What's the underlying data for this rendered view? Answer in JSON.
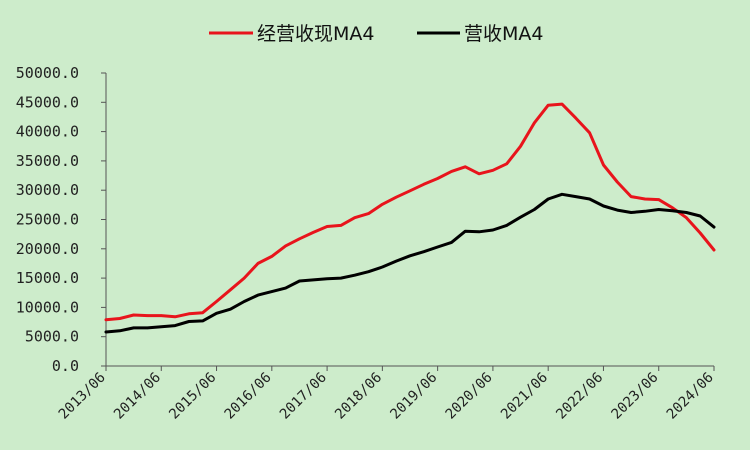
{
  "chart_data": {
    "type": "line",
    "title": "",
    "xlabel": "",
    "ylabel": "",
    "ylim": [
      0,
      50000
    ],
    "yticks": [
      "0.0",
      "5000.0",
      "10000.0",
      "15000.0",
      "20000.0",
      "25000.0",
      "30000.0",
      "35000.0",
      "40000.0",
      "45000.0",
      "50000.0"
    ],
    "x": [
      "2013/06",
      "2013/09",
      "2013/12",
      "2014/03",
      "2014/06",
      "2014/09",
      "2014/12",
      "2015/03",
      "2015/06",
      "2015/09",
      "2015/12",
      "2016/03",
      "2016/06",
      "2016/09",
      "2016/12",
      "2017/03",
      "2017/06",
      "2017/09",
      "2017/12",
      "2018/03",
      "2018/06",
      "2018/09",
      "2018/12",
      "2019/03",
      "2019/06",
      "2019/09",
      "2019/12",
      "2020/03",
      "2020/06",
      "2020/09",
      "2020/12",
      "2021/03",
      "2021/06",
      "2021/09",
      "2021/12",
      "2022/03",
      "2022/06",
      "2022/09",
      "2022/12",
      "2023/03",
      "2023/06",
      "2023/09",
      "2023/12",
      "2024/03",
      "2024/06"
    ],
    "xticks": [
      "2013/06",
      "2014/06",
      "2015/06",
      "2016/06",
      "2017/06",
      "2018/06",
      "2019/06",
      "2020/06",
      "2021/06",
      "2022/06",
      "2023/06",
      "2024/06"
    ],
    "legend_position": "top",
    "grid": false,
    "series": [
      {
        "name": "经营收现MA4",
        "color": "#e8141c",
        "values": [
          7900,
          8100,
          8700,
          8600,
          8600,
          8400,
          8900,
          9100,
          11000,
          13000,
          15000,
          17500,
          18700,
          20500,
          21700,
          22800,
          23800,
          24000,
          25300,
          26000,
          27600,
          28800,
          29900,
          31000,
          32000,
          33200,
          34000,
          32800,
          33400,
          34500,
          37500,
          41500,
          44500,
          44700,
          42300,
          39800,
          34300,
          31400,
          28900,
          28500,
          28400,
          27000,
          25300,
          22700,
          19800
        ]
      },
      {
        "name": "营收MA4",
        "color": "#000000",
        "values": [
          5800,
          6000,
          6500,
          6500,
          6700,
          6900,
          7600,
          7700,
          9000,
          9700,
          11000,
          12100,
          12700,
          13300,
          14500,
          14700,
          14900,
          15000,
          15500,
          16100,
          16900,
          17900,
          18800,
          19500,
          20300,
          21100,
          23000,
          22900,
          23200,
          24000,
          25400,
          26700,
          28500,
          29300,
          28900,
          28500,
          27300,
          26600,
          26200,
          26400,
          26700,
          26500,
          26200,
          25600,
          23700
        ]
      }
    ]
  }
}
